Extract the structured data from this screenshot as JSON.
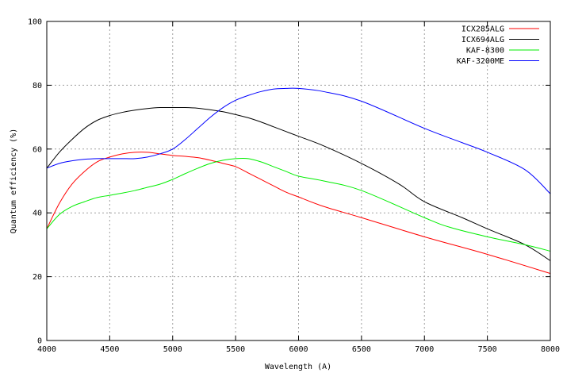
{
  "chart_data": {
    "type": "line",
    "xlabel": "Wavelength (A)",
    "ylabel": "Quantum efficiency (%)",
    "xlim": [
      4000,
      8000
    ],
    "ylim": [
      0,
      100
    ],
    "xticks": [
      4000,
      4500,
      5000,
      5500,
      6000,
      6500,
      7000,
      7500,
      8000
    ],
    "yticks": [
      0,
      20,
      40,
      60,
      80,
      100
    ],
    "grid": true,
    "legend_position": "top-right",
    "series": [
      {
        "name": "ICX285ALG",
        "color": "#ff0000",
        "points": [
          [
            4000,
            35
          ],
          [
            4100,
            43
          ],
          [
            4200,
            49
          ],
          [
            4300,
            53
          ],
          [
            4400,
            56
          ],
          [
            4500,
            57.5
          ],
          [
            4600,
            58.5
          ],
          [
            4700,
            59
          ],
          [
            4800,
            59
          ],
          [
            4900,
            58.5
          ],
          [
            5000,
            58
          ],
          [
            5100,
            57.7
          ],
          [
            5200,
            57.3
          ],
          [
            5300,
            56.5
          ],
          [
            5400,
            55.5
          ],
          [
            5500,
            54.5
          ],
          [
            5600,
            52.5
          ],
          [
            5700,
            50.5
          ],
          [
            5800,
            48.5
          ],
          [
            5900,
            46.5
          ],
          [
            6000,
            45
          ],
          [
            6200,
            42
          ],
          [
            6500,
            38.5
          ],
          [
            7000,
            32.5
          ],
          [
            7500,
            27
          ],
          [
            8000,
            21
          ]
        ]
      },
      {
        "name": "ICX694ALG",
        "color": "#000000",
        "points": [
          [
            4000,
            54
          ],
          [
            4100,
            59
          ],
          [
            4200,
            63
          ],
          [
            4300,
            66.5
          ],
          [
            4400,
            69
          ],
          [
            4500,
            70.5
          ],
          [
            4600,
            71.5
          ],
          [
            4700,
            72.2
          ],
          [
            4800,
            72.7
          ],
          [
            4900,
            73
          ],
          [
            5000,
            73
          ],
          [
            5100,
            73
          ],
          [
            5200,
            72.8
          ],
          [
            5300,
            72.3
          ],
          [
            5400,
            71.7
          ],
          [
            5500,
            70.8
          ],
          [
            5600,
            69.8
          ],
          [
            5700,
            68.5
          ],
          [
            5800,
            67
          ],
          [
            5900,
            65.5
          ],
          [
            6000,
            64
          ],
          [
            6200,
            61
          ],
          [
            6500,
            55.5
          ],
          [
            6800,
            49
          ],
          [
            7000,
            43.5
          ],
          [
            7300,
            38.5
          ],
          [
            7500,
            35
          ],
          [
            7800,
            30
          ],
          [
            8000,
            25
          ]
        ]
      },
      {
        "name": "KAF-8300",
        "color": "#00ee00",
        "points": [
          [
            4000,
            35
          ],
          [
            4100,
            39.5
          ],
          [
            4200,
            42
          ],
          [
            4300,
            43.5
          ],
          [
            4400,
            44.8
          ],
          [
            4500,
            45.5
          ],
          [
            4600,
            46.2
          ],
          [
            4700,
            47
          ],
          [
            4800,
            48
          ],
          [
            4900,
            49
          ],
          [
            5000,
            50.5
          ],
          [
            5100,
            52.3
          ],
          [
            5200,
            54
          ],
          [
            5300,
            55.5
          ],
          [
            5400,
            56.5
          ],
          [
            5500,
            57
          ],
          [
            5600,
            57
          ],
          [
            5700,
            56
          ],
          [
            5800,
            54.5
          ],
          [
            5900,
            53
          ],
          [
            6000,
            51.5
          ],
          [
            6200,
            50
          ],
          [
            6500,
            47
          ],
          [
            7000,
            38.5
          ],
          [
            7200,
            35.5
          ],
          [
            7500,
            32.5
          ],
          [
            7800,
            30
          ],
          [
            8000,
            28
          ]
        ]
      },
      {
        "name": "KAF-3200ME",
        "color": "#0000ff",
        "points": [
          [
            4000,
            54
          ],
          [
            4100,
            55.5
          ],
          [
            4200,
            56.3
          ],
          [
            4300,
            56.8
          ],
          [
            4400,
            57
          ],
          [
            4500,
            57
          ],
          [
            4600,
            57
          ],
          [
            4700,
            57
          ],
          [
            4800,
            57.5
          ],
          [
            4900,
            58.5
          ],
          [
            5000,
            60
          ],
          [
            5100,
            63
          ],
          [
            5200,
            66.5
          ],
          [
            5300,
            70
          ],
          [
            5400,
            73
          ],
          [
            5500,
            75.3
          ],
          [
            5600,
            76.8
          ],
          [
            5700,
            78
          ],
          [
            5800,
            78.8
          ],
          [
            5900,
            79
          ],
          [
            6000,
            79
          ],
          [
            6200,
            78
          ],
          [
            6500,
            75
          ],
          [
            7000,
            66.5
          ],
          [
            7300,
            62
          ],
          [
            7500,
            59
          ],
          [
            7800,
            53.5
          ],
          [
            8000,
            46
          ]
        ]
      }
    ]
  }
}
